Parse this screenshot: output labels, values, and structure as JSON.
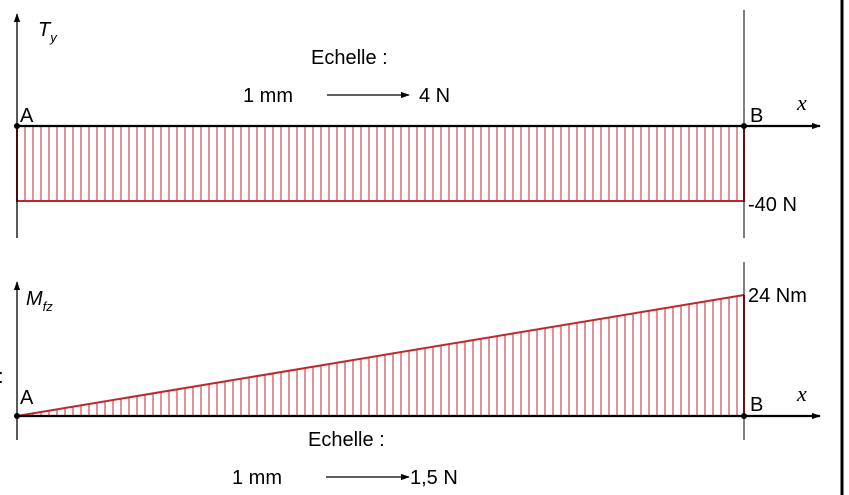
{
  "colors": {
    "hatch": "#c0272d",
    "ink": "#000000",
    "frame": "#000000"
  },
  "stray_char": ":",
  "shear": {
    "label_main": "T",
    "label_sub": "y",
    "point_a": "A",
    "point_b": "B",
    "axis": "x",
    "value_label": "-40 N",
    "value": -40,
    "scale_title": "Echelle :",
    "scale_left": "1 mm",
    "scale_right": "4 N"
  },
  "moment": {
    "label_main": "M",
    "label_sub": "fz",
    "point_a": "A",
    "point_b": "B",
    "axis": "x",
    "value_label": "24 Nm",
    "value_start": 0,
    "value_end": 24,
    "scale_title": "Echelle :",
    "scale_left": "1 mm",
    "scale_right": "1,5 N"
  }
}
